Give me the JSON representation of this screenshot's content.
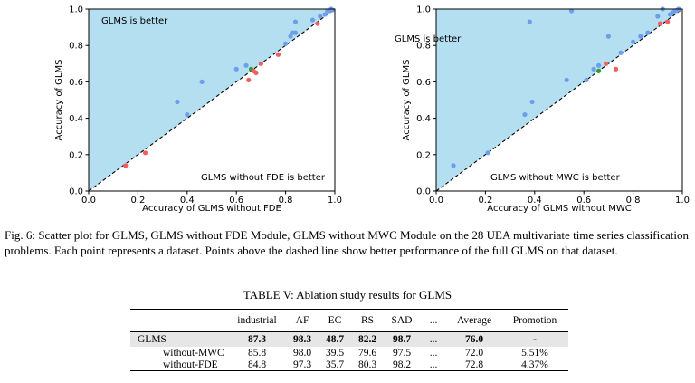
{
  "figure": {
    "plots": [
      {
        "id": "left",
        "ylabel": "Accuracy of GLMS",
        "xlabel": "Accuracy of GLMS without FDE",
        "region_upper": "GLMS is better",
        "region_lower": "GLMS without FDE is better",
        "xticks": [
          "0.0",
          "0.2",
          "0.4",
          "0.6",
          "0.8",
          "1.0"
        ],
        "yticks": [
          "0.0",
          "0.2",
          "0.4",
          "0.6",
          "0.8",
          "1.0"
        ],
        "fill_color": "#b3dff0",
        "colors": {
          "blue": "#6f9ded",
          "red": "#f35d5d",
          "green": "#2ca02c"
        }
      },
      {
        "id": "right",
        "ylabel": "Accuracy of GLMS",
        "xlabel": "Accuracy of GLMS without MWC",
        "region_upper": "GLMS is better",
        "region_lower": "GLMS without MWC is better",
        "xticks": [
          "0.0",
          "0.2",
          "0.4",
          "0.6",
          "0.8",
          "1.0"
        ],
        "yticks": [
          "0.0",
          "0.2",
          "0.4",
          "0.6",
          "0.8",
          "1.0"
        ],
        "fill_color": "#b3dff0",
        "colors": {
          "blue": "#6f9ded",
          "red": "#f35d5d",
          "green": "#2ca02c"
        }
      }
    ],
    "caption": "Fig. 6: Scatter plot for GLMS, GLMS without FDE Module, GLMS without MWC Module on the 28 UEA multivariate time series classification problems. Each point represents a dataset. Points above the dashed line show better performance of the full GLMS on that dataset."
  },
  "chart_data": [
    {
      "type": "scatter",
      "xlabel": "Accuracy of GLMS without FDE",
      "ylabel": "Accuracy of GLMS",
      "xlim": [
        0,
        1
      ],
      "ylim": [
        0,
        1
      ],
      "grid": false,
      "reference_line": "y = x (dashed)",
      "points": [
        {
          "x": 0.15,
          "y": 0.14,
          "c": "red"
        },
        {
          "x": 0.23,
          "y": 0.21,
          "c": "red"
        },
        {
          "x": 0.36,
          "y": 0.49,
          "c": "blue"
        },
        {
          "x": 0.4,
          "y": 0.42,
          "c": "blue"
        },
        {
          "x": 0.46,
          "y": 0.6,
          "c": "blue"
        },
        {
          "x": 0.6,
          "y": 0.67,
          "c": "blue"
        },
        {
          "x": 0.64,
          "y": 0.69,
          "c": "blue"
        },
        {
          "x": 0.65,
          "y": 0.61,
          "c": "red"
        },
        {
          "x": 0.66,
          "y": 0.67,
          "c": "green"
        },
        {
          "x": 0.67,
          "y": 0.66,
          "c": "red"
        },
        {
          "x": 0.68,
          "y": 0.65,
          "c": "red"
        },
        {
          "x": 0.7,
          "y": 0.7,
          "c": "red"
        },
        {
          "x": 0.77,
          "y": 0.75,
          "c": "red"
        },
        {
          "x": 0.8,
          "y": 0.81,
          "c": "blue"
        },
        {
          "x": 0.82,
          "y": 0.85,
          "c": "blue"
        },
        {
          "x": 0.83,
          "y": 0.87,
          "c": "blue"
        },
        {
          "x": 0.84,
          "y": 0.87,
          "c": "blue"
        },
        {
          "x": 0.84,
          "y": 0.93,
          "c": "blue"
        },
        {
          "x": 0.91,
          "y": 0.94,
          "c": "blue"
        },
        {
          "x": 0.93,
          "y": 0.92,
          "c": "red"
        },
        {
          "x": 0.94,
          "y": 0.96,
          "c": "blue"
        },
        {
          "x": 0.96,
          "y": 0.97,
          "c": "blue"
        },
        {
          "x": 0.97,
          "y": 0.99,
          "c": "blue"
        },
        {
          "x": 0.98,
          "y": 0.99,
          "c": "blue"
        },
        {
          "x": 0.985,
          "y": 1.0,
          "c": "blue"
        },
        {
          "x": 0.99,
          "y": 0.995,
          "c": "blue"
        }
      ]
    },
    {
      "type": "scatter",
      "xlabel": "Accuracy of GLMS without MWC",
      "ylabel": "Accuracy of GLMS",
      "xlim": [
        0,
        1
      ],
      "ylim": [
        0,
        1
      ],
      "grid": false,
      "reference_line": "y = x (dashed)",
      "points": [
        {
          "x": 0.07,
          "y": 0.14,
          "c": "blue"
        },
        {
          "x": 0.21,
          "y": 0.21,
          "c": "blue"
        },
        {
          "x": 0.36,
          "y": 0.42,
          "c": "blue"
        },
        {
          "x": 0.39,
          "y": 0.49,
          "c": "blue"
        },
        {
          "x": 0.38,
          "y": 0.93,
          "c": "blue"
        },
        {
          "x": 0.53,
          "y": 0.61,
          "c": "blue"
        },
        {
          "x": 0.55,
          "y": 0.99,
          "c": "blue"
        },
        {
          "x": 0.61,
          "y": 0.61,
          "c": "blue"
        },
        {
          "x": 0.64,
          "y": 0.67,
          "c": "blue"
        },
        {
          "x": 0.66,
          "y": 0.69,
          "c": "blue"
        },
        {
          "x": 0.66,
          "y": 0.66,
          "c": "green"
        },
        {
          "x": 0.69,
          "y": 0.7,
          "c": "red"
        },
        {
          "x": 0.7,
          "y": 0.85,
          "c": "blue"
        },
        {
          "x": 0.73,
          "y": 0.67,
          "c": "red"
        },
        {
          "x": 0.75,
          "y": 0.76,
          "c": "blue"
        },
        {
          "x": 0.8,
          "y": 0.82,
          "c": "blue"
        },
        {
          "x": 0.83,
          "y": 0.85,
          "c": "blue"
        },
        {
          "x": 0.86,
          "y": 0.87,
          "c": "blue"
        },
        {
          "x": 0.9,
          "y": 0.96,
          "c": "blue"
        },
        {
          "x": 0.91,
          "y": 0.92,
          "c": "red"
        },
        {
          "x": 0.92,
          "y": 1.0,
          "c": "blue"
        },
        {
          "x": 0.94,
          "y": 0.93,
          "c": "red"
        },
        {
          "x": 0.95,
          "y": 0.97,
          "c": "blue"
        },
        {
          "x": 0.96,
          "y": 0.98,
          "c": "blue"
        },
        {
          "x": 0.97,
          "y": 0.99,
          "c": "blue"
        },
        {
          "x": 0.98,
          "y": 0.995,
          "c": "blue"
        },
        {
          "x": 0.985,
          "y": 1.0,
          "c": "blue"
        }
      ]
    },
    {
      "type": "table",
      "title": "TABLE V: Ablation study results for GLMS",
      "columns": [
        "",
        "industrial",
        "AF",
        "EC",
        "RS",
        "SAD",
        "...",
        "Average",
        "Promotion"
      ],
      "rows": [
        [
          "GLMS",
          "87.3",
          "98.3",
          "48.7",
          "82.2",
          "98.7",
          "...",
          "76.0",
          "-"
        ],
        [
          "without-MWC",
          "85.8",
          "98.0",
          "39.5",
          "79.6",
          "97.5",
          "...",
          "72.0",
          "5.51%"
        ],
        [
          "without-FDE",
          "84.8",
          "97.3",
          "35.7",
          "80.3",
          "98.2",
          "...",
          "72.8",
          "4.37%"
        ]
      ]
    }
  ],
  "table": {
    "title": "TABLE V: Ablation study results for GLMS",
    "header": [
      "",
      "industrial",
      "AF",
      "EC",
      "RS",
      "SAD",
      "...",
      "Average",
      "Promotion"
    ],
    "rows": [
      {
        "cells": [
          "GLMS",
          "87.3",
          "98.3",
          "48.7",
          "82.2",
          "98.7",
          "...",
          "76.0",
          "-"
        ],
        "highlight": true
      },
      {
        "cells": [
          "without-MWC",
          "85.8",
          "98.0",
          "39.5",
          "79.6",
          "97.5",
          "...",
          "72.0",
          "5.51%"
        ],
        "highlight": false
      },
      {
        "cells": [
          "without-FDE",
          "84.8",
          "97.3",
          "35.7",
          "80.3",
          "98.2",
          "...",
          "72.8",
          "4.37%"
        ],
        "highlight": false
      }
    ]
  }
}
